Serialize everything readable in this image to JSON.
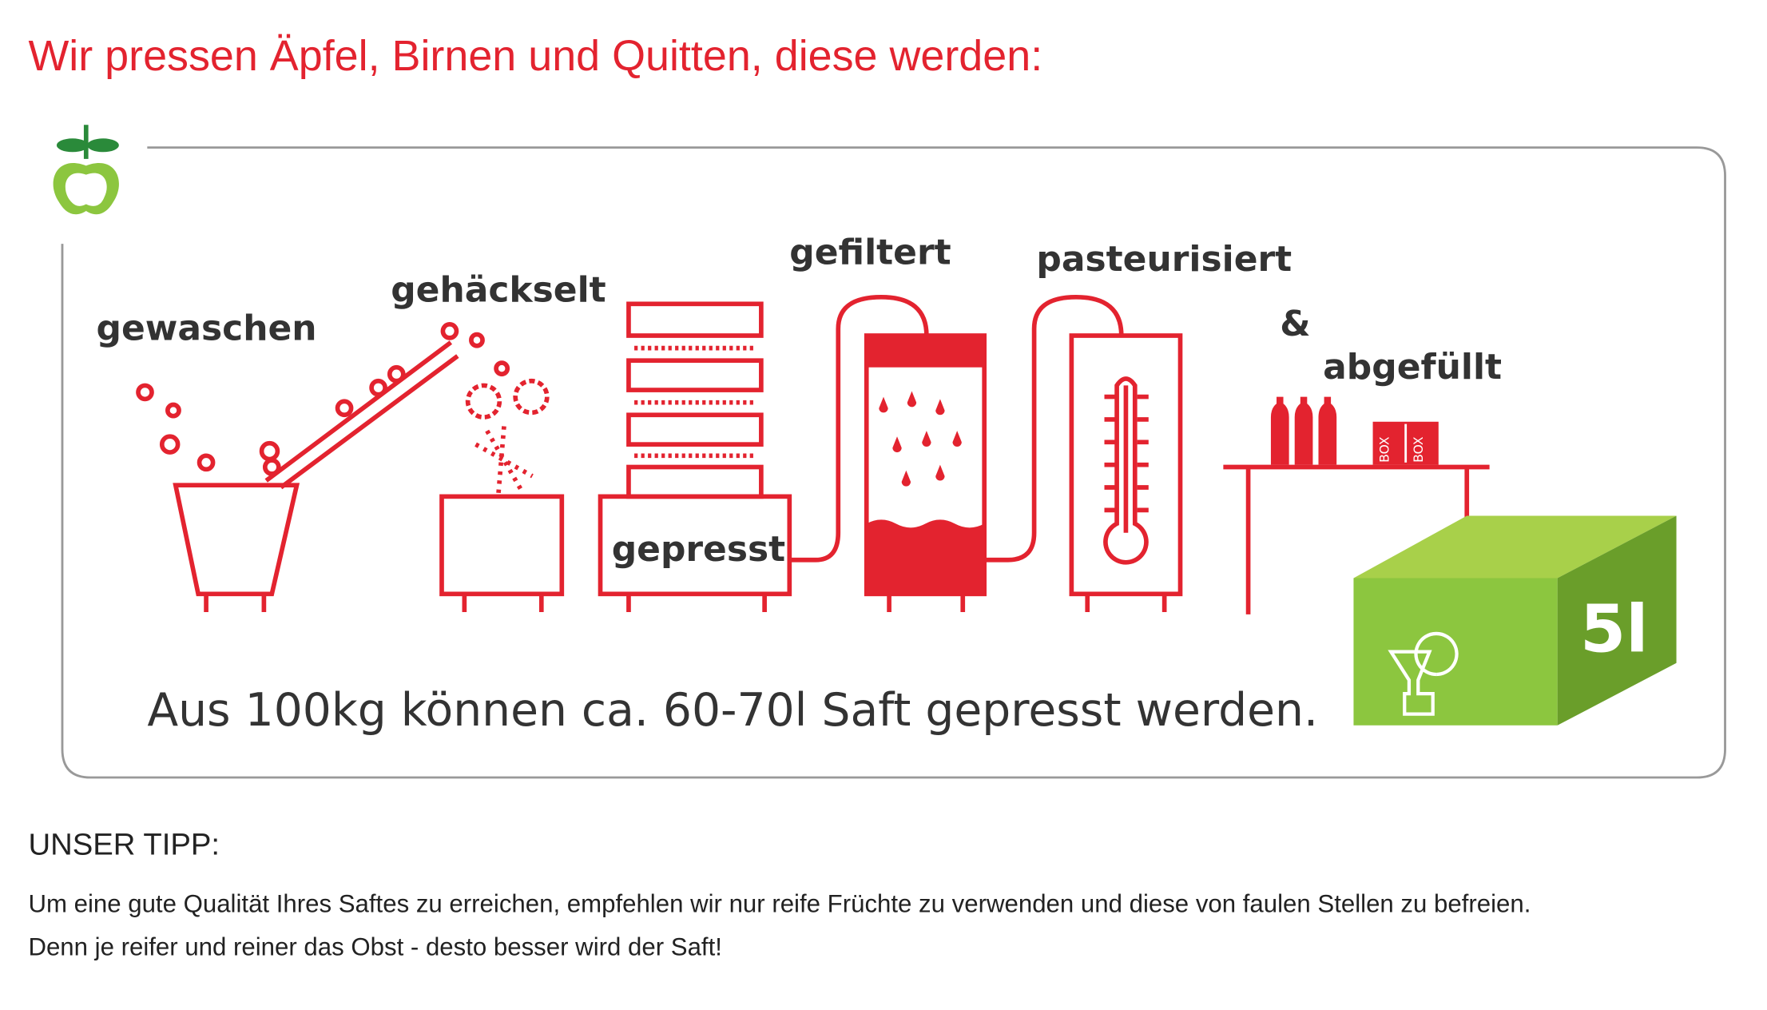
{
  "header": {
    "title": "Wir pressen Äpfel, Birnen und Quitten, diese werden:"
  },
  "diagram": {
    "steps": [
      "gewaschen",
      "gehäckselt",
      "gepresst",
      "gefiltert",
      "pasteurisiert",
      "&",
      "abgefüllt"
    ],
    "box_labels": [
      "BOX",
      "BOX"
    ],
    "bag_label": "5l",
    "note": "Aus 100kg können ca. 60-70l Saft gepresst werden."
  },
  "tip": {
    "title": "UNSER TIPP:",
    "lines": [
      "Um eine gute Qualität Ihres Saftes zu erreichen, empfehlen wir nur reife Früchte zu verwenden und diese von faulen Stellen zu befreien.",
      "Denn je reifer und reiner das Obst - desto besser wird der Saft!"
    ]
  }
}
